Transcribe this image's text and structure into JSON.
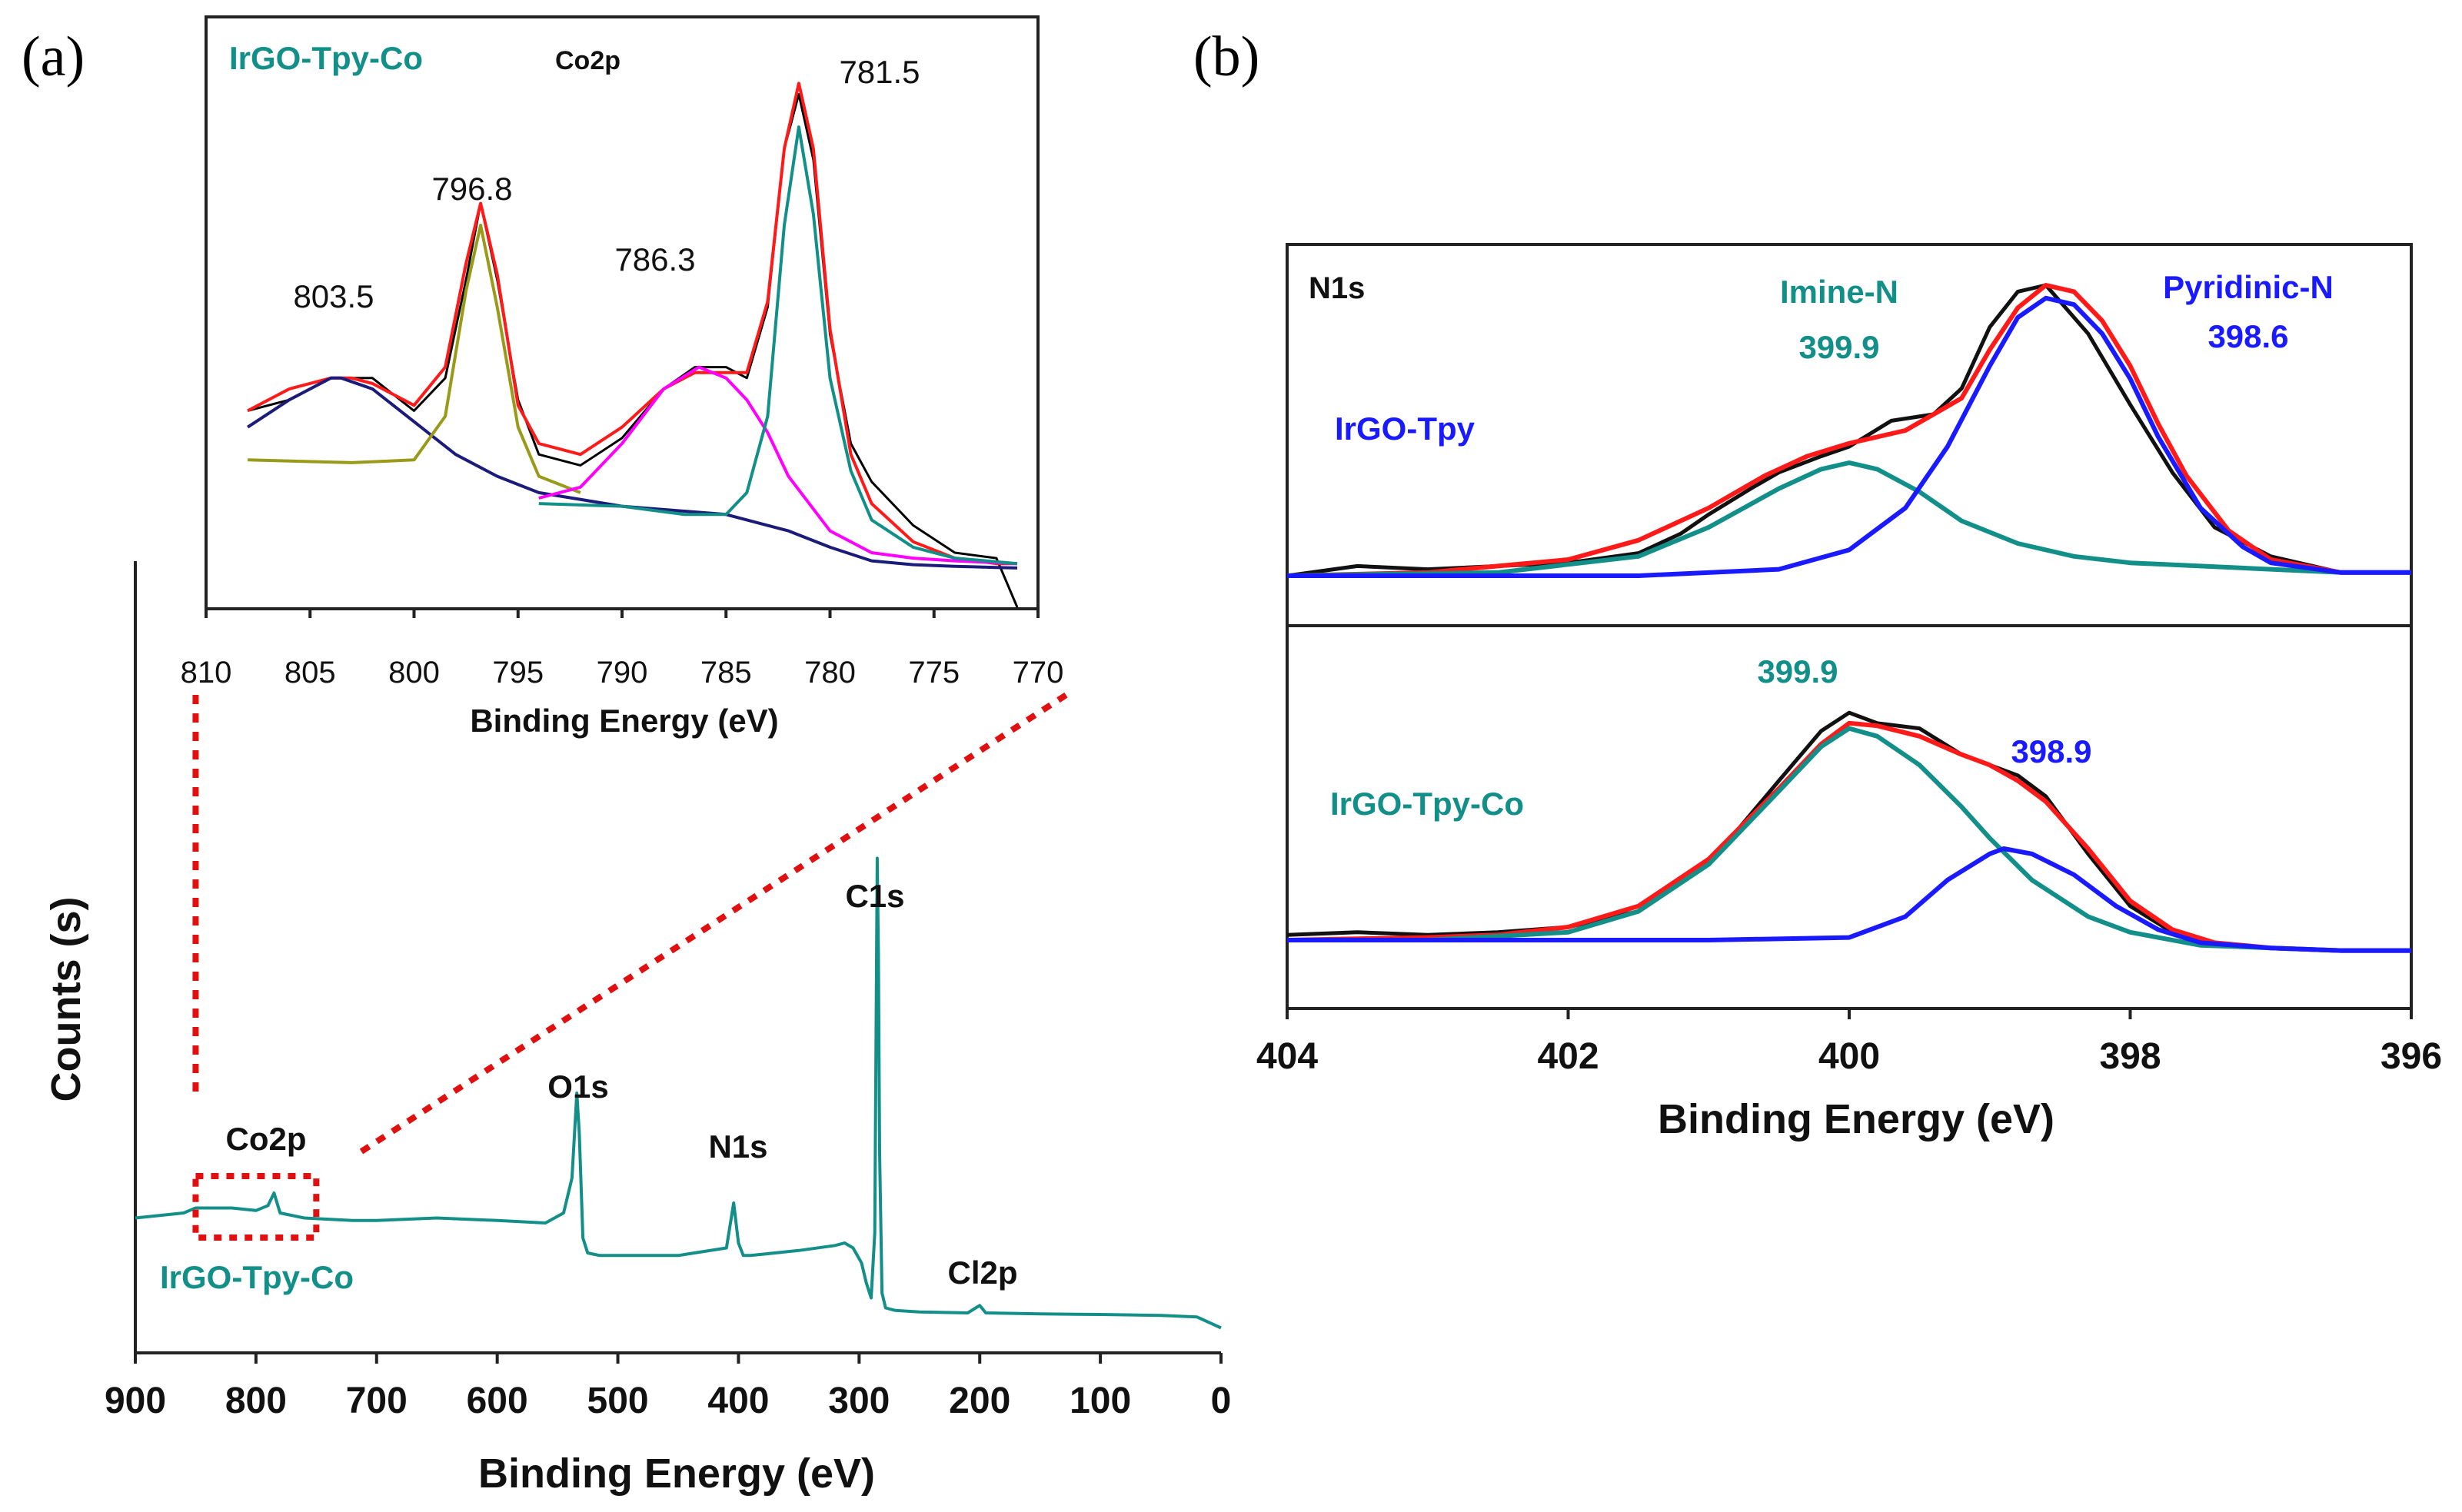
{
  "chart_data": [
    {
      "id": "a-survey",
      "type": "line",
      "panel_label": "(a)",
      "xlabel": "Binding Energy (eV)",
      "ylabel": "Counts (s)",
      "xlim": [
        900,
        0
      ],
      "ylim": [
        0,
        100
      ],
      "xticks": [
        "900",
        "800",
        "700",
        "600",
        "500",
        "400",
        "300",
        "200",
        "100",
        "0"
      ],
      "sample_label": "IrGO-Tpy-Co",
      "series": [
        {
          "name": "IrGO-Tpy-Co survey",
          "color": "#138f8a",
          "x": [
            900,
            860,
            850,
            820,
            800,
            790,
            785,
            780,
            760,
            720,
            700,
            650,
            600,
            560,
            545,
            538,
            534,
            532,
            529,
            525,
            515,
            500,
            450,
            410,
            404,
            400,
            396,
            390,
            350,
            320,
            312,
            305,
            298,
            294,
            290,
            287,
            285,
            284,
            283,
            281,
            278,
            270,
            250,
            210,
            200,
            195,
            150,
            100,
            50,
            20,
            0
          ],
          "y": [
            27,
            28,
            29,
            29,
            28.5,
            29.5,
            32,
            28,
            27,
            26.5,
            26.5,
            27,
            26.5,
            26,
            28,
            35,
            52,
            44,
            23,
            20,
            19.5,
            19.5,
            19.5,
            21,
            30,
            22,
            19.5,
            19.5,
            20.5,
            21.5,
            22,
            21,
            18,
            14,
            11,
            24,
            99,
            80,
            40,
            12,
            9,
            8.5,
            8.2,
            8,
            9.5,
            8,
            7.8,
            7.7,
            7.5,
            7.2,
            5
          ]
        }
      ],
      "annotations": [
        {
          "text": "C1s",
          "x": 285
        },
        {
          "text": "O1s",
          "x": 532
        },
        {
          "text": "N1s",
          "x": 400
        },
        {
          "text": "Co2p",
          "x": 790
        },
        {
          "text": "Cl2p",
          "x": 200
        }
      ],
      "zoom_box": {
        "x_from": 850,
        "x_to": 750
      }
    },
    {
      "id": "a-inset-co2p",
      "type": "line",
      "title": "Co2p",
      "sample_label": "IrGO-Tpy-Co",
      "xlabel": "Binding Energy (eV)",
      "xlim": [
        810,
        770
      ],
      "ylim": [
        0,
        100
      ],
      "xticks": [
        "810",
        "805",
        "800",
        "795",
        "790",
        "785",
        "780",
        "775",
        "770"
      ],
      "peak_labels": [
        "803.5",
        "796.8",
        "786.3",
        "781.5"
      ],
      "series": [
        {
          "name": "raw data",
          "color": "#000000",
          "x": [
            808,
            806,
            804,
            802,
            800,
            798.5,
            797.5,
            796.8,
            796,
            795,
            794,
            792,
            790,
            788,
            786.5,
            785,
            784,
            783,
            782.2,
            781.5,
            780.8,
            780,
            779,
            778,
            776,
            774,
            772,
            771
          ],
          "y": [
            36,
            38,
            42,
            42,
            36,
            42,
            60,
            74,
            60,
            38,
            28,
            26,
            31,
            40,
            44,
            44,
            42,
            55,
            84,
            94,
            82,
            50,
            30,
            23,
            15,
            10,
            9,
            0
          ]
        },
        {
          "name": "fit envelope",
          "color": "#ff1a1a",
          "x": [
            808,
            806,
            804,
            803,
            802,
            800,
            798.5,
            797.5,
            796.8,
            796,
            795,
            794,
            792,
            790,
            788,
            786.5,
            785,
            784,
            783,
            782.2,
            781.5,
            780.8,
            780,
            779,
            778,
            776,
            774,
            772,
            771
          ],
          "y": [
            36,
            40,
            42,
            42,
            41,
            37,
            44,
            63,
            74,
            61,
            37,
            30,
            28,
            33,
            40,
            43,
            43,
            43,
            56,
            84,
            96,
            84,
            51,
            28,
            19,
            12,
            9,
            8,
            8
          ]
        },
        {
          "name": "background",
          "color": "#1b1b7a",
          "x": [
            808,
            806,
            804,
            803.5,
            802,
            800,
            798,
            796,
            794,
            790,
            785,
            782,
            780,
            778,
            776,
            774,
            772,
            771
          ],
          "y": [
            33,
            38,
            42,
            42,
            40,
            34,
            28,
            24,
            21,
            18.5,
            17,
            14,
            11,
            8.5,
            7.8,
            7.5,
            7.3,
            7.2
          ]
        },
        {
          "name": "796.8 component",
          "color": "#9a9a1a",
          "x": [
            808,
            803,
            800,
            798.5,
            797.5,
            796.8,
            796,
            795,
            794,
            792
          ],
          "y": [
            27,
            26.5,
            27,
            35,
            58,
            70,
            55,
            33,
            24,
            21
          ]
        },
        {
          "name": "786.3 component",
          "color": "#ff00ff",
          "x": [
            794,
            792,
            790,
            788,
            786.3,
            785,
            784,
            783,
            782,
            780,
            778,
            776,
            774,
            771
          ],
          "y": [
            20,
            22,
            30,
            40,
            44,
            42,
            38,
            32,
            24,
            14,
            10,
            9,
            8.5,
            8
          ]
        },
        {
          "name": "781.5 component",
          "color": "#138f8a",
          "x": [
            794,
            790,
            787,
            785,
            784,
            783,
            782.2,
            781.5,
            780.8,
            780,
            779,
            778,
            776,
            774,
            771
          ],
          "y": [
            19,
            18.5,
            17,
            17,
            21,
            35,
            70,
            88,
            72,
            42,
            25,
            16,
            11,
            9,
            8
          ]
        }
      ]
    },
    {
      "id": "b-n1s",
      "type": "line",
      "panel_label": "(b)",
      "title": "N1s",
      "xlabel": "Binding Energy (eV)",
      "xlim": [
        404,
        396
      ],
      "xticks": [
        "404",
        "402",
        "400",
        "398",
        "396"
      ],
      "subplots": [
        {
          "sample_label": "IrGO-Tpy",
          "ylim": [
            0,
            100
          ],
          "annotations": [
            {
              "text": "Imine-N",
              "value": "399.9",
              "color": "#138f8a"
            },
            {
              "text": "Pyridinic-N",
              "value": "398.6",
              "color": "#1a1aff"
            }
          ],
          "series": [
            {
              "name": "raw data",
              "color": "#111111",
              "x": [
                404,
                403.5,
                403,
                402.5,
                402,
                401.5,
                401.2,
                401,
                400.7,
                400.5,
                400.2,
                400,
                399.7,
                399.4,
                399.2,
                399,
                398.8,
                398.6,
                398.3,
                398,
                397.7,
                397.4,
                397,
                396.5,
                396
              ],
              "y": [
                5,
                8,
                7,
                8,
                9,
                12,
                18,
                24,
                32,
                37,
                42,
                45,
                53,
                55,
                63,
                82,
                93,
                95,
                80,
                58,
                37,
                20,
                11,
                6,
                6
              ]
            },
            {
              "name": "fit envelope",
              "color": "#ff1a1a",
              "x": [
                404,
                403,
                402.5,
                402,
                401.5,
                401,
                400.6,
                400.3,
                400,
                399.6,
                399.2,
                399,
                398.8,
                398.6,
                398.4,
                398.2,
                398,
                397.8,
                397.6,
                397.3,
                397,
                396.5,
                396
              ],
              "y": [
                5,
                6,
                8,
                10,
                16,
                26,
                36,
                42,
                46,
                50,
                60,
                75,
                88,
                95,
                93,
                84,
                70,
                52,
                36,
                19,
                10,
                6,
                6
              ]
            },
            {
              "name": "Imine-N component",
              "color": "#138f8a",
              "x": [
                404,
                402.5,
                401.5,
                401,
                400.5,
                400.2,
                400,
                399.8,
                399.5,
                399.2,
                398.8,
                398.4,
                398,
                397.5,
                397,
                396.5,
                396
              ],
              "y": [
                5,
                6,
                11,
                20,
                32,
                38,
                40,
                38,
                31,
                22,
                15,
                11,
                9,
                8,
                7,
                6,
                6
              ]
            },
            {
              "name": "Pyridinic-N component",
              "color": "#1a1aff",
              "x": [
                404,
                401.5,
                400.5,
                400,
                399.6,
                399.3,
                399,
                398.8,
                398.6,
                398.4,
                398.2,
                398,
                397.8,
                397.5,
                397.2,
                397,
                396.5,
                396
              ],
              "y": [
                5,
                5,
                7,
                13,
                26,
                45,
                70,
                85,
                91,
                89,
                80,
                66,
                48,
                26,
                14,
                9,
                6,
                6
              ]
            }
          ]
        },
        {
          "sample_label": "IrGO-Tpy-Co",
          "ylim": [
            0,
            100
          ],
          "annotations": [
            {
              "text": "",
              "value": "399.9",
              "color": "#138f8a"
            },
            {
              "text": "",
              "value": "398.9",
              "color": "#1a1aff"
            }
          ],
          "series": [
            {
              "name": "raw data",
              "color": "#111111",
              "x": [
                404,
                403.5,
                403,
                402.5,
                402,
                401.5,
                401,
                400.5,
                400.2,
                400,
                399.8,
                399.5,
                399.2,
                399,
                398.8,
                398.6,
                398.3,
                398,
                397.7,
                397.4,
                397,
                396.5,
                396
              ],
              "y": [
                7,
                8,
                7,
                8,
                10,
                16,
                34,
                66,
                85,
                92,
                88,
                86,
                76,
                72,
                68,
                60,
                38,
                18,
                8,
                4,
                2,
                1,
                1
              ]
            },
            {
              "name": "fit envelope",
              "color": "#ff1a1a",
              "x": [
                404,
                403,
                402.5,
                402,
                401.5,
                401,
                400.5,
                400.2,
                400,
                399.8,
                399.5,
                399.2,
                399,
                398.8,
                398.6,
                398.3,
                398,
                397.7,
                397.4,
                397,
                396.5,
                396
              ],
              "y": [
                5,
                6,
                7,
                10,
                18,
                36,
                63,
                80,
                88,
                87,
                83,
                76,
                72,
                66,
                58,
                40,
                20,
                9,
                4,
                2,
                1,
                1
              ]
            },
            {
              "name": "399.9 component",
              "color": "#138f8a",
              "x": [
                404,
                403,
                402,
                401.5,
                401,
                400.5,
                400.2,
                400,
                399.8,
                399.5,
                399.2,
                399,
                398.7,
                398.3,
                398,
                397.5,
                397,
                396.5,
                396
              ],
              "y": [
                5,
                5,
                8,
                16,
                34,
                62,
                79,
                86,
                83,
                72,
                56,
                44,
                28,
                14,
                8,
                3,
                2,
                1,
                1
              ]
            },
            {
              "name": "398.9 component",
              "color": "#1a1aff",
              "x": [
                404,
                401,
                400,
                399.6,
                399.3,
                399,
                398.9,
                398.7,
                398.4,
                398.1,
                397.8,
                397.5,
                397,
                396.5,
                396
              ],
              "y": [
                5,
                5,
                6,
                14,
                28,
                38,
                40,
                38,
                30,
                18,
                9,
                4,
                2,
                1,
                1
              ]
            }
          ]
        }
      ]
    }
  ]
}
